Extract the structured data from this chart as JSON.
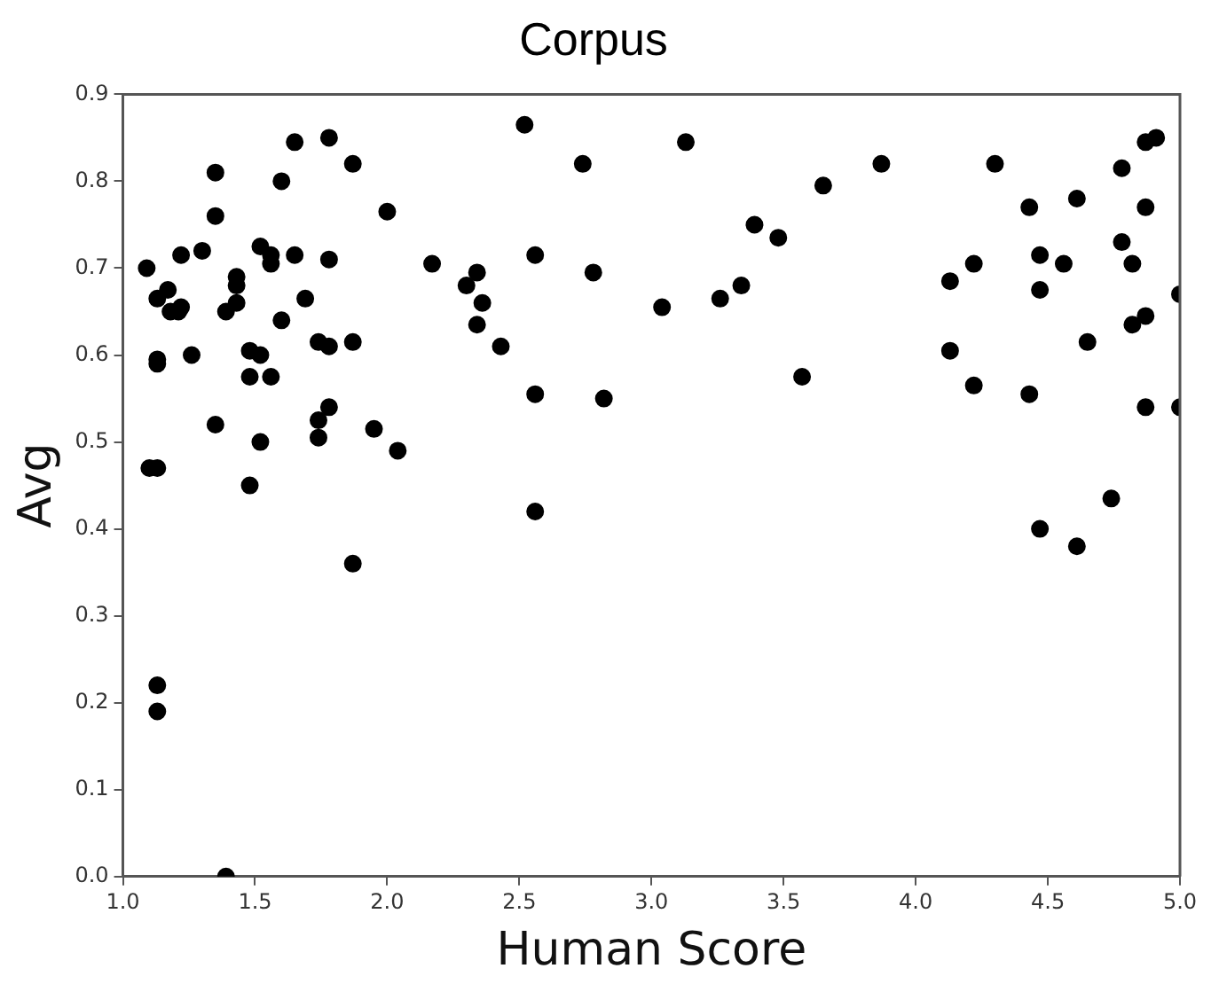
{
  "chart_data": {
    "type": "scatter",
    "title": "Corpus",
    "xlabel": "Human Score",
    "ylabel": "Avg",
    "xlim": [
      1,
      5
    ],
    "xticks": [
      {
        "value": 1,
        "label": "1.0"
      },
      1.5,
      {
        "value": 2,
        "label": "2.0"
      },
      2.5,
      {
        "value": 3,
        "label": "3.0"
      },
      3.5,
      {
        "value": 4,
        "label": "4.0"
      },
      4.5,
      {
        "value": 5,
        "label": "5.0"
      }
    ],
    "ylim": [
      0,
      0.9
    ],
    "yticks": [
      {
        "value": 0,
        "label": "0.0"
      },
      0.1,
      0.2,
      0.3,
      0.4,
      0.5,
      0.6,
      0.7,
      0.8,
      0.9
    ],
    "grid": false,
    "legend": false,
    "marker": "circle",
    "series": [
      {
        "color": "#000000",
        "x": [
          1.09,
          1.1,
          1.13,
          1.13,
          1.13,
          1.13,
          1.13,
          1.13,
          1.17,
          1.18,
          1.21,
          1.22,
          1.22,
          1.26,
          1.3,
          1.35,
          1.35,
          1.35,
          1.39,
          1.39,
          1.43,
          1.43,
          1.43,
          1.48,
          1.48,
          1.48,
          1.52,
          1.52,
          1.52,
          1.56,
          1.56,
          1.56,
          1.6,
          1.6,
          1.65,
          1.65,
          1.69,
          1.74,
          1.74,
          1.74,
          1.78,
          1.78,
          1.78,
          1.78,
          1.87,
          1.87,
          1.87,
          1.95,
          2.0,
          2.04,
          2.17,
          2.3,
          2.34,
          2.36,
          2.34,
          2.43,
          2.52,
          2.56,
          2.56,
          2.56,
          2.74,
          2.78,
          2.82,
          3.04,
          3.13,
          3.26,
          3.34,
          3.39,
          3.48,
          3.57,
          3.65,
          3.87,
          4.13,
          4.13,
          4.22,
          4.22,
          4.3,
          4.43,
          4.43,
          4.47,
          4.47,
          4.47,
          4.56,
          4.61,
          4.61,
          4.65,
          4.74,
          4.78,
          4.78,
          4.82,
          4.82,
          4.87,
          4.87,
          4.87,
          4.87,
          4.91,
          5.0,
          5.0
        ],
        "values": [
          0.7,
          0.47,
          0.47,
          0.665,
          0.59,
          0.595,
          0.22,
          0.19,
          0.675,
          0.65,
          0.65,
          0.655,
          0.715,
          0.6,
          0.72,
          0.81,
          0.76,
          0.52,
          0.0,
          0.65,
          0.69,
          0.68,
          0.66,
          0.45,
          0.605,
          0.575,
          0.725,
          0.6,
          0.5,
          0.715,
          0.705,
          0.575,
          0.8,
          0.64,
          0.845,
          0.715,
          0.665,
          0.615,
          0.525,
          0.505,
          0.85,
          0.71,
          0.61,
          0.54,
          0.82,
          0.615,
          0.36,
          0.515,
          0.765,
          0.49,
          0.705,
          0.68,
          0.695,
          0.66,
          0.635,
          0.61,
          0.865,
          0.715,
          0.555,
          0.42,
          0.82,
          0.695,
          0.55,
          0.655,
          0.845,
          0.665,
          0.68,
          0.75,
          0.735,
          0.575,
          0.795,
          0.82,
          0.685,
          0.605,
          0.705,
          0.565,
          0.82,
          0.77,
          0.555,
          0.715,
          0.675,
          0.4,
          0.705,
          0.78,
          0.38,
          0.615,
          0.435,
          0.815,
          0.73,
          0.705,
          0.635,
          0.845,
          0.77,
          0.645,
          0.54,
          0.85,
          0.67,
          0.54
        ]
      }
    ]
  }
}
